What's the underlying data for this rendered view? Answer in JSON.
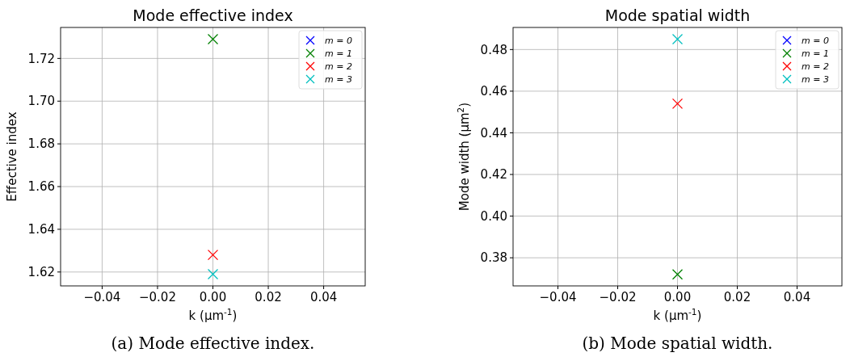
{
  "chart_data": [
    {
      "type": "scatter",
      "title": "Mode effective index",
      "xlabel": "k (μm$^{-1}$)",
      "ylabel": "Effective index",
      "x": [
        0
      ],
      "series": [
        {
          "name": "m = 0",
          "color": "#0000ff",
          "values": [
            null
          ]
        },
        {
          "name": "m = 1",
          "color": "#008000",
          "values": [
            1.729
          ]
        },
        {
          "name": "m = 2",
          "color": "#ff0000",
          "values": [
            1.628
          ]
        },
        {
          "name": "m = 3",
          "color": "#00bfbf",
          "values": [
            1.619
          ]
        }
      ],
      "xlim": [
        -0.055,
        0.055
      ],
      "xticks": [
        {
          "value": -0.04,
          "label": "−0.04"
        },
        {
          "value": -0.02,
          "label": "−0.02"
        },
        {
          "value": 0,
          "label": "0.00"
        },
        {
          "value": 0.02,
          "label": "0.02"
        },
        {
          "value": 0.04,
          "label": "0.04"
        }
      ],
      "ylim": [
        1.6135,
        1.7345
      ],
      "yticks": [
        {
          "value": 1.62,
          "label": "1.62"
        },
        {
          "value": 1.64,
          "label": "1.64"
        },
        {
          "value": 1.66,
          "label": "1.66"
        },
        {
          "value": 1.68,
          "label": "1.68"
        },
        {
          "value": 1.7,
          "label": "1.70"
        },
        {
          "value": 1.72,
          "label": "1.72"
        }
      ],
      "grid": true,
      "legend": "top right",
      "marker": "cross",
      "annotations": [
        "(a) Mode effective index."
      ]
    },
    {
      "type": "scatter",
      "title": "Mode spatial width",
      "xlabel": "k (μm$^{-1}$)",
      "ylabel": "Mode width (μm$^{2}$)",
      "x": [
        0
      ],
      "series": [
        {
          "name": "m = 0",
          "color": "#0000ff",
          "values": [
            null
          ]
        },
        {
          "name": "m = 1",
          "color": "#008000",
          "values": [
            0.372
          ]
        },
        {
          "name": "m = 2",
          "color": "#ff0000",
          "values": [
            0.454
          ]
        },
        {
          "name": "m = 3",
          "color": "#00bfbf",
          "values": [
            0.485
          ]
        }
      ],
      "xlim": [
        -0.055,
        0.055
      ],
      "xticks": [
        {
          "value": -0.04,
          "label": "−0.04"
        },
        {
          "value": -0.02,
          "label": "−0.02"
        },
        {
          "value": 0,
          "label": "0.00"
        },
        {
          "value": 0.02,
          "label": "0.02"
        },
        {
          "value": 0.04,
          "label": "0.04"
        }
      ],
      "ylim": [
        0.3665,
        0.4906
      ],
      "yticks": [
        {
          "value": 0.38,
          "label": "0.38"
        },
        {
          "value": 0.4,
          "label": "0.40"
        },
        {
          "value": 0.42,
          "label": "0.42"
        },
        {
          "value": 0.44,
          "label": "0.44"
        },
        {
          "value": 0.46,
          "label": "0.46"
        },
        {
          "value": 0.48,
          "label": "0.48"
        }
      ],
      "grid": true,
      "legend": "top right",
      "marker": "cross",
      "annotations": [
        "(b) Mode spatial width."
      ]
    }
  ]
}
